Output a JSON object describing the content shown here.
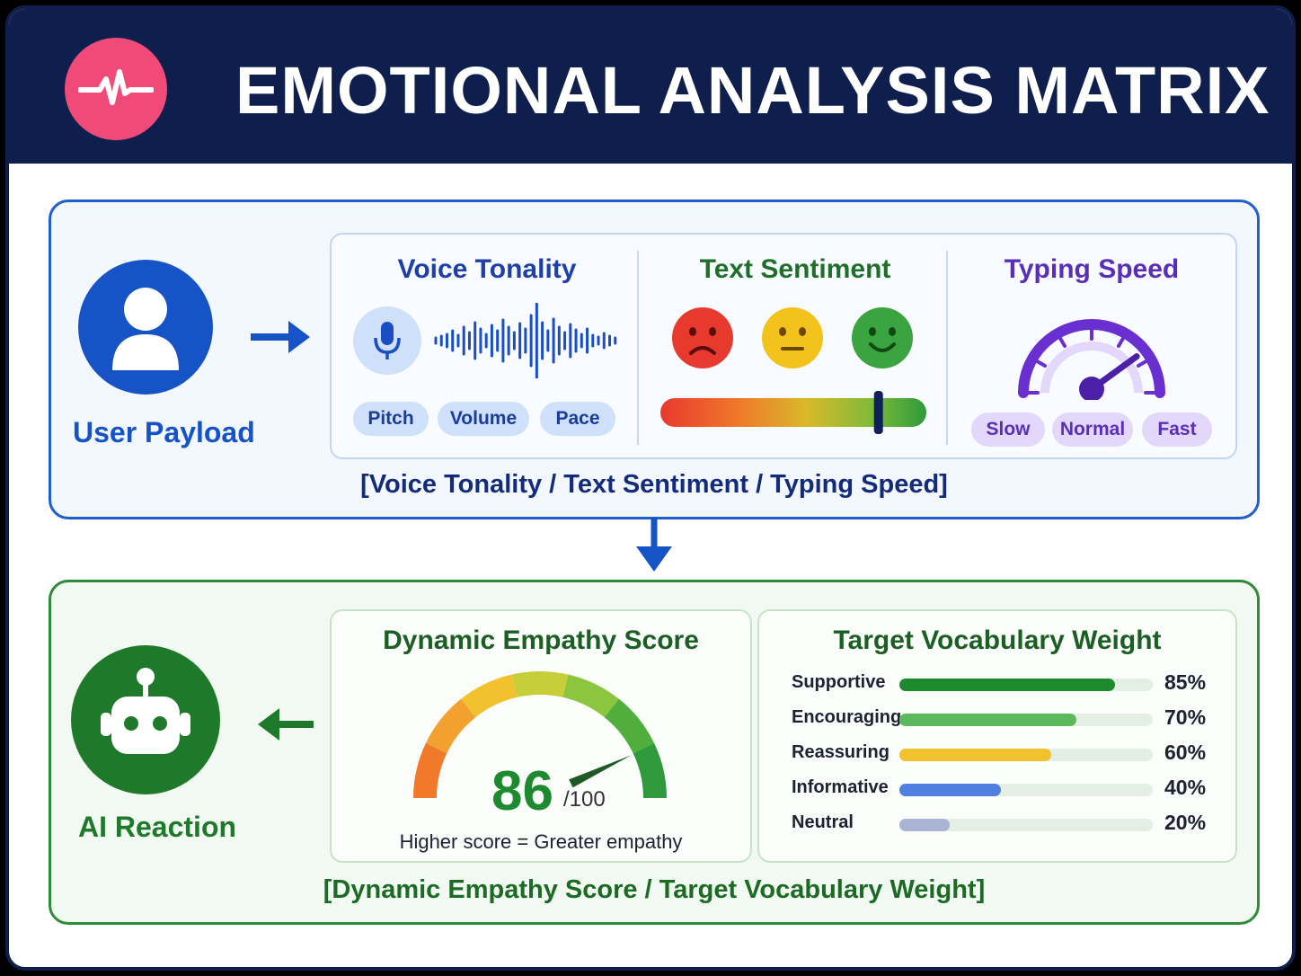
{
  "header": {
    "title": "EMOTIONAL ANALYSIS MATRIX",
    "logo_icon": "heartbeat-icon",
    "background": "#0f1f4d",
    "logo_color": "#f04a78"
  },
  "input": {
    "node_label": "User Payload",
    "node_icon": "user-icon",
    "caption": "[Voice Tonality / Text Sentiment / Typing Speed]",
    "voice": {
      "title": "Voice Tonality",
      "icon": "microphone-icon",
      "pills": [
        "Pitch",
        "Volume",
        "Pace"
      ]
    },
    "sentiment": {
      "title": "Text Sentiment",
      "faces": [
        "sad-face-icon",
        "neutral-face-icon",
        "happy-face-icon"
      ],
      "slider_level": 0.82
    },
    "typing": {
      "title": "Typing Speed",
      "icon": "speedometer-icon",
      "pills": [
        "Slow",
        "Normal",
        "Fast"
      ],
      "needle_level": 0.8
    }
  },
  "output": {
    "node_label": "AI Reaction",
    "node_icon": "robot-icon",
    "caption": "[Dynamic Empathy Score / Target Vocabulary Weight]",
    "empathy": {
      "title": "Dynamic Empathy Score",
      "score": "86",
      "max": "/100",
      "score_value": 86,
      "note": "Higher score = Greater empathy"
    },
    "vocab": {
      "title": "Target Vocabulary Weight",
      "items": [
        {
          "label": "Supportive",
          "pct": "85%",
          "value": 85,
          "color": "#1e8a30"
        },
        {
          "label": "Encouraging",
          "pct": "70%",
          "value": 70,
          "color": "#5cb85c"
        },
        {
          "label": "Reassuring",
          "pct": "60%",
          "value": 60,
          "color": "#f2c12e"
        },
        {
          "label": "Informative",
          "pct": "40%",
          "value": 40,
          "color": "#4f7fe0"
        },
        {
          "label": "Neutral",
          "pct": "20%",
          "value": 20,
          "color": "#a9b4d4"
        }
      ]
    }
  }
}
